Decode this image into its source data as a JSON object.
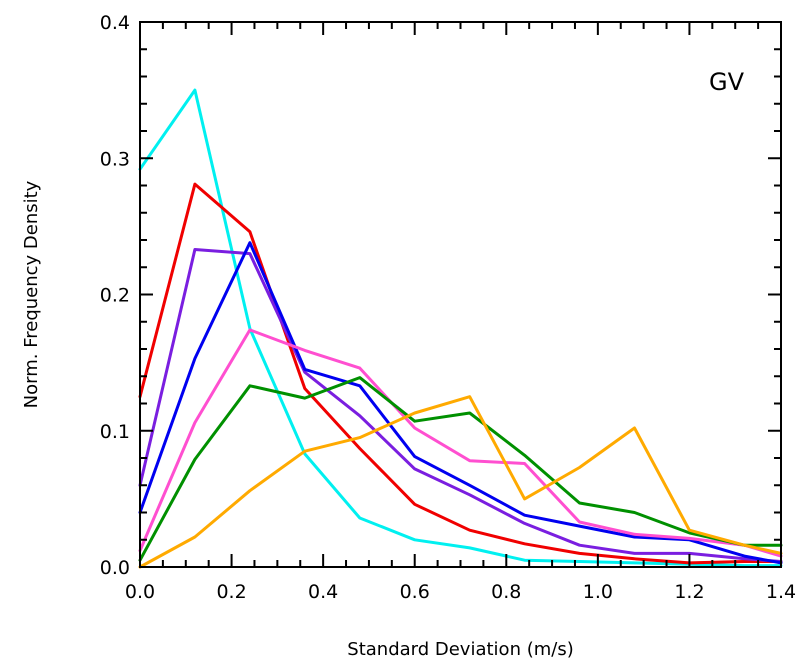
{
  "chart_data": {
    "type": "line",
    "title": "",
    "panel_label": "GV",
    "xlabel": "Standard Deviation (m/s)",
    "ylabel": "Norm. Frequency Density",
    "xlim": [
      0.0,
      1.4
    ],
    "ylim": [
      0.0,
      0.4
    ],
    "x_ticks": [
      "0.0",
      "0.2",
      "0.4",
      "0.6",
      "0.8",
      "1.0",
      "1.2",
      "1.4"
    ],
    "y_ticks": [
      "0.0",
      "0.1",
      "0.2",
      "0.3",
      "0.4"
    ],
    "grid": false,
    "legend": "none",
    "x": [
      0.0,
      0.12,
      0.24,
      0.36,
      0.48,
      0.6,
      0.72,
      0.84,
      0.96,
      1.08,
      1.2,
      1.32,
      1.4
    ],
    "series": [
      {
        "color": "#00f0f0",
        "values": [
          0.292,
          0.35,
          0.175,
          0.083,
          0.036,
          0.02,
          0.014,
          0.005,
          0.004,
          0.003,
          0.002,
          0.001,
          0.001
        ]
      },
      {
        "color": "#f00000",
        "values": [
          0.125,
          0.281,
          0.246,
          0.131,
          0.087,
          0.046,
          0.027,
          0.017,
          0.01,
          0.006,
          0.003,
          0.004,
          0.004
        ]
      },
      {
        "color": "#7a1ee0",
        "values": [
          0.06,
          0.233,
          0.23,
          0.143,
          0.111,
          0.072,
          0.053,
          0.032,
          0.016,
          0.01,
          0.01,
          0.006,
          0.004
        ]
      },
      {
        "color": "#0000f0",
        "values": [
          0.04,
          0.153,
          0.238,
          0.145,
          0.133,
          0.081,
          0.06,
          0.038,
          0.03,
          0.022,
          0.02,
          0.008,
          0.003
        ]
      },
      {
        "color": "#ff4fd0",
        "values": [
          0.012,
          0.106,
          0.174,
          0.159,
          0.146,
          0.102,
          0.078,
          0.076,
          0.033,
          0.024,
          0.021,
          0.016,
          0.008
        ]
      },
      {
        "color": "#009000",
        "values": [
          0.005,
          0.079,
          0.133,
          0.124,
          0.139,
          0.107,
          0.113,
          0.082,
          0.047,
          0.04,
          0.025,
          0.016,
          0.016
        ]
      },
      {
        "color": "#ffaa00",
        "values": [
          0.0,
          0.022,
          0.056,
          0.085,
          0.095,
          0.113,
          0.125,
          0.05,
          0.073,
          0.102,
          0.027,
          0.016,
          0.01
        ]
      }
    ]
  }
}
